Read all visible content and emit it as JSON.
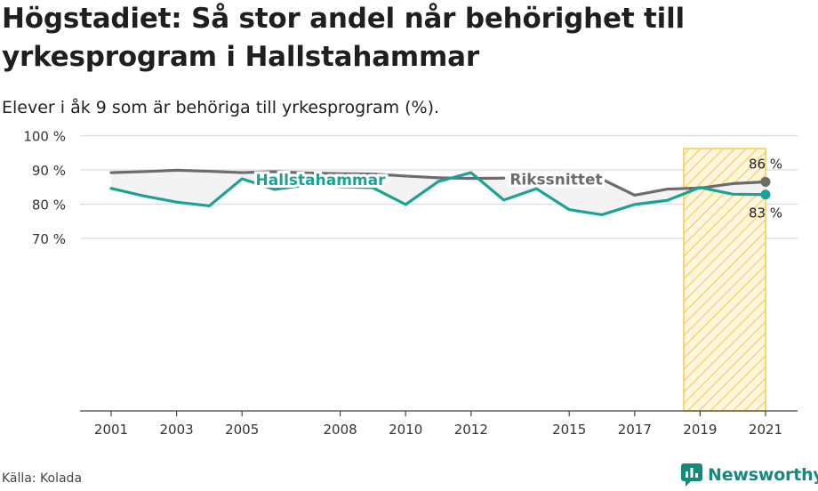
{
  "title": "Högstadiet: Så stor andel når behörighet till yrkesprogram i Hallstahammar",
  "subtitle": "Elever i åk 9 som är behöriga till yrkesprogram (%).",
  "source": "Källa: Kolada",
  "brand": "Newsworthy",
  "colors": {
    "hallstahammar": "#1aa395",
    "riket": "#6b6b70",
    "highlight": "#f7c94b",
    "shade": "#f3f3f3",
    "grid": "#dcdcdc"
  },
  "chart_data": {
    "type": "line",
    "ylim": [
      65,
      103
    ],
    "xlim": [
      2000.2,
      2021.6
    ],
    "yticks": [
      {
        "value": 70,
        "label": "70 %"
      },
      {
        "value": 80,
        "label": "80 %"
      },
      {
        "value": 90,
        "label": "90 %"
      },
      {
        "value": 100,
        "label": "100 %"
      }
    ],
    "xticks": [
      {
        "value": 2001,
        "label": "2001"
      },
      {
        "value": 2003,
        "label": "2003"
      },
      {
        "value": 2005,
        "label": "2005"
      },
      {
        "value": 2008,
        "label": "2008"
      },
      {
        "value": 2010,
        "label": "2010"
      },
      {
        "value": 2012,
        "label": "2012"
      },
      {
        "value": 2015,
        "label": "2015"
      },
      {
        "value": 2017,
        "label": "2017"
      },
      {
        "value": 2019,
        "label": "2019"
      },
      {
        "value": 2021,
        "label": "2021"
      }
    ],
    "highlight_range": [
      2018.5,
      2021
    ],
    "grid": true,
    "series": [
      {
        "name": "Rikssnittet",
        "key": "riket",
        "label_year": 2014.6,
        "x": [
          2001,
          2002,
          2003,
          2004,
          2005,
          2006,
          2007,
          2008,
          2009,
          2010,
          2011,
          2012,
          2013,
          2016,
          2017,
          2018,
          2019,
          2020,
          2021
        ],
        "y": [
          89.2,
          89.5,
          89.9,
          89.6,
          89.2,
          89.5,
          89.1,
          88.9,
          88.8,
          88.2,
          87.7,
          87.5,
          87.6,
          87.3,
          82.6,
          84.4,
          84.7,
          86.0,
          86.5
        ],
        "end_label": "86 %"
      },
      {
        "name": "Hallstahammar",
        "key": "hallstahammar",
        "label_year": 2007.4,
        "x": [
          2001,
          2002,
          2003,
          2004,
          2005,
          2006,
          2007,
          2008,
          2009,
          2010,
          2011,
          2012,
          2013,
          2014,
          2015,
          2016,
          2017,
          2018,
          2019,
          2020,
          2021
        ],
        "y": [
          84.6,
          82.4,
          80.6,
          79.5,
          87.4,
          84.3,
          85.6,
          85.1,
          84.8,
          79.9,
          86.6,
          89.2,
          81.2,
          84.5,
          78.4,
          76.9,
          79.9,
          81.1,
          84.9,
          82.9,
          82.8
        ],
        "end_label": "83 %"
      }
    ]
  }
}
